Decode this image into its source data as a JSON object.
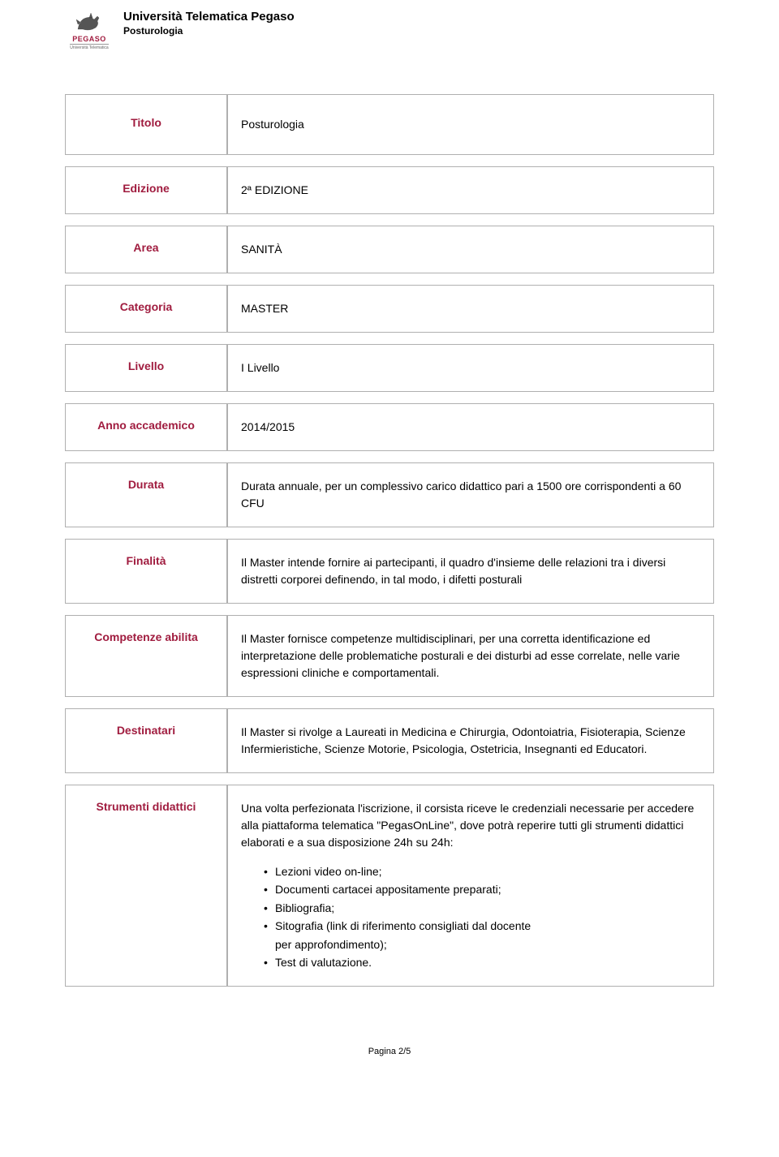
{
  "header": {
    "university": "Università Telematica Pegaso",
    "course": "Posturologia",
    "logo_brand": "PEGASO",
    "logo_sub": "Università Telematica",
    "brand_color": "#a01c3f",
    "border_color": "#b0b0b0"
  },
  "rows": [
    {
      "label": "Titolo",
      "value": "Posturologia",
      "first": true
    },
    {
      "label": "Edizione",
      "value": "2ª EDIZIONE"
    },
    {
      "label": "Area",
      "value": "SANITÀ"
    },
    {
      "label": "Categoria",
      "value": "MASTER"
    },
    {
      "label": "Livello",
      "value": "I Livello"
    },
    {
      "label": "Anno accademico",
      "value": "2014/2015"
    },
    {
      "label": "Durata",
      "value": "Durata annuale, per un complessivo carico didattico pari a 1500 ore corrispondenti a 60 CFU"
    },
    {
      "label": "Finalità",
      "value": "Il Master intende fornire ai partecipanti, il quadro d'insieme delle relazioni tra i diversi distretti corporei definendo, in tal modo, i difetti posturali"
    },
    {
      "label": "Competenze abilita",
      "value": "Il Master fornisce competenze multidisciplinari, per una corretta identificazione ed interpretazione delle problematiche posturali e dei disturbi ad esse correlate, nelle varie espressioni cliniche e comportamentali."
    },
    {
      "label": "Destinatari",
      "value": "Il Master si rivolge a Laureati in Medicina e Chirurgia, Odontoiatria, Fisioterapia, Scienze Infermieristiche, Scienze Motorie, Psicologia, Ostetricia, Insegnanti ed Educatori."
    }
  ],
  "strumenti": {
    "label": "Strumenti didattici",
    "intro": "Una volta perfezionata l'iscrizione, il corsista riceve le credenziali necessarie per accedere alla piattaforma telematica \"PegasOnLine\", dove potrà reperire tutti gli strumenti didattici elaborati e a sua disposizione 24h su 24h:",
    "items": [
      {
        "text": "Lezioni video on-line;"
      },
      {
        "text": "Documenti cartacei appositamente preparati;"
      },
      {
        "text": "Bibliografia;"
      },
      {
        "text": "Sitografia (link di riferimento consigliati dal docente",
        "sub": "per approfondimento);"
      },
      {
        "text": "Test di valutazione."
      }
    ]
  },
  "footer": "Pagina 2/5"
}
